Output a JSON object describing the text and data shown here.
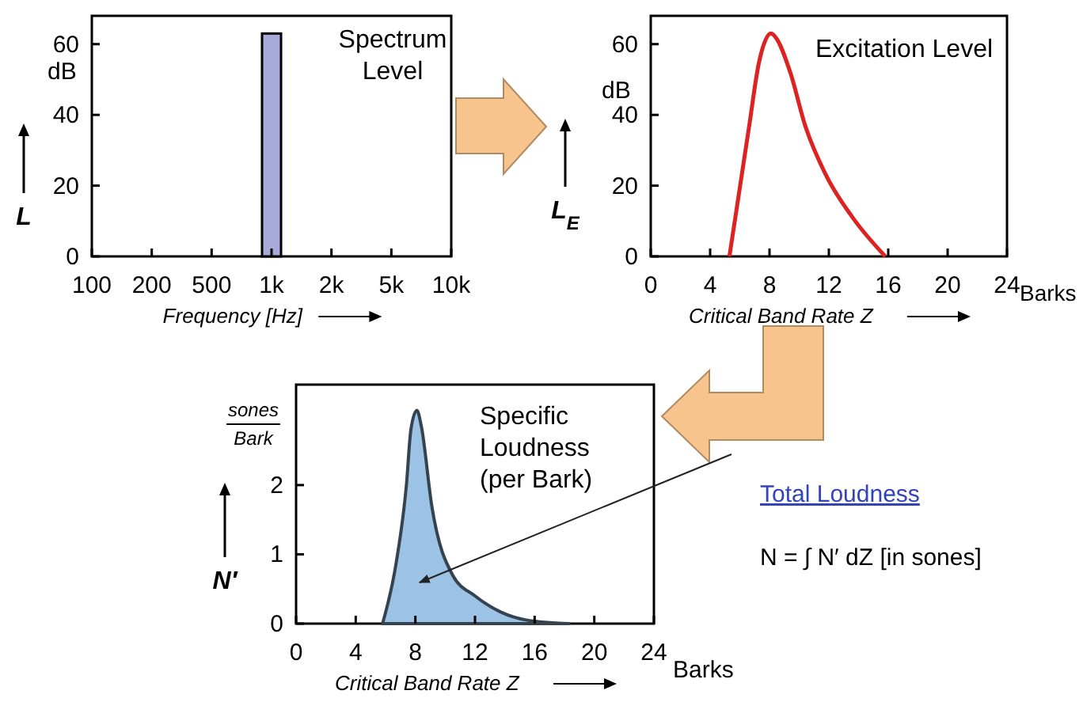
{
  "chart_data": [
    {
      "type": "bar",
      "title": "Spectrum\nLevel",
      "xlabel": "Frequency [Hz]",
      "ylabel": "L",
      "annotations": [
        "dB"
      ],
      "categories": [
        "100",
        "200",
        "500",
        "1k",
        "2k",
        "5k",
        "10k"
      ],
      "values": [
        null,
        null,
        null,
        63,
        null,
        null,
        null
      ],
      "color": "#a8aadc",
      "ylim": [
        0,
        68
      ],
      "yticks": [
        0,
        20,
        40,
        60
      ],
      "grid": false
    },
    {
      "type": "line",
      "title": "Excitation Level",
      "xlabel": "Critical Band Rate Z",
      "ylabel": "L$_{E}$",
      "annotations": [
        "dB",
        "Barks"
      ],
      "x": [
        5.3,
        6.6,
        7.3,
        8.1,
        8.4,
        9.4,
        10.4,
        11.8,
        13.6,
        15.8
      ],
      "values": [
        0,
        36,
        55,
        63,
        62,
        52,
        37,
        23,
        11,
        0
      ],
      "color": "#dd2222",
      "xlim": [
        0,
        24
      ],
      "xticks": [
        0,
        4,
        8,
        12,
        16,
        20,
        24
      ],
      "ylim": [
        0,
        68
      ],
      "yticks": [
        0,
        20,
        40,
        60
      ],
      "grid": false
    },
    {
      "type": "area",
      "title": "Specific\nLoudness\n(per Bark)",
      "xlabel": "Critical Band Rate Z",
      "ylabel": "N′",
      "annotations": [
        "sones",
        "Bark",
        "Barks",
        "Total Loudness",
        "N = ∫ N′ dZ    [in sones]"
      ],
      "x": [
        5.8,
        6.7,
        7.4,
        7.7,
        8.1,
        8.4,
        9.1,
        10.5,
        12,
        13.7,
        15.5,
        18.3
      ],
      "values": [
        0,
        0.86,
        2,
        2.8,
        3.08,
        2.85,
        1.7,
        0.7,
        0.4,
        0.17,
        0.05,
        0
      ],
      "color": "#9cc3e6",
      "xlim": [
        0,
        24
      ],
      "xticks": [
        0,
        4,
        8,
        12,
        16,
        20,
        24
      ],
      "ylim": [
        0,
        3.45
      ],
      "yticks": [
        0,
        1,
        2
      ],
      "grid": false
    }
  ]
}
